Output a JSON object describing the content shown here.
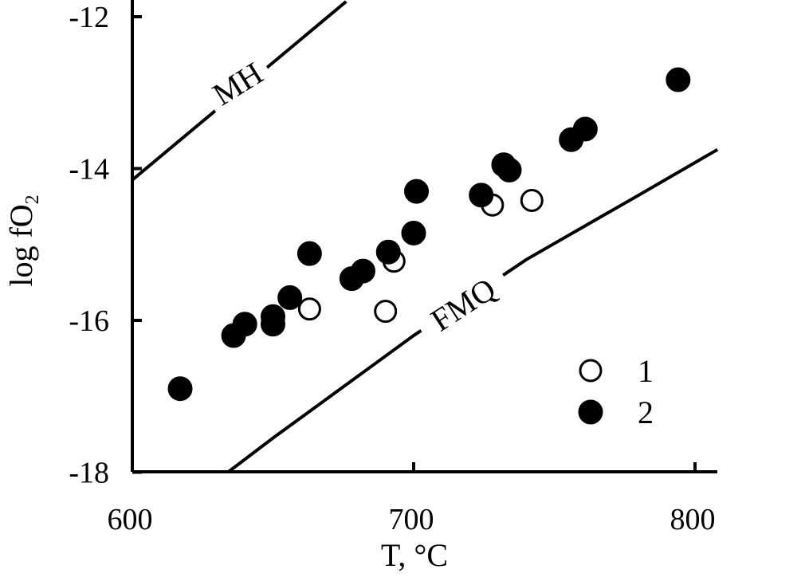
{
  "chart_data": {
    "type": "scatter",
    "xlabel": "T, °C",
    "ylabel_main": "log fO",
    "ylabel_sub": "2",
    "xlim": [
      600,
      808
    ],
    "ylim": [
      -18,
      -11.8
    ],
    "x_ticks": [
      600,
      700,
      800
    ],
    "x_tick_labels": [
      "600",
      "700",
      "800"
    ],
    "y_ticks": [
      -12,
      -14,
      -16,
      -18
    ],
    "y_tick_labels": [
      "-12",
      "-14",
      "-16",
      "-18"
    ],
    "grid": false,
    "legend_position": "bottom-right",
    "series": [
      {
        "name": "1",
        "marker": "open-circle",
        "points": [
          [
            663,
            -15.85
          ],
          [
            690,
            -15.88
          ],
          [
            693,
            -15.22
          ],
          [
            728,
            -14.48
          ],
          [
            742,
            -14.42
          ]
        ]
      },
      {
        "name": "2",
        "marker": "filled-circle",
        "points": [
          [
            617,
            -16.9
          ],
          [
            636,
            -16.2
          ],
          [
            640,
            -16.05
          ],
          [
            650,
            -15.95
          ],
          [
            650,
            -16.05
          ],
          [
            656,
            -15.7
          ],
          [
            663,
            -15.12
          ],
          [
            678,
            -15.45
          ],
          [
            682,
            -15.35
          ],
          [
            691,
            -15.1
          ],
          [
            700,
            -14.85
          ],
          [
            701,
            -14.3
          ],
          [
            724,
            -14.35
          ],
          [
            732,
            -13.95
          ],
          [
            734,
            -14.02
          ],
          [
            756,
            -13.62
          ],
          [
            761,
            -13.48
          ],
          [
            794,
            -12.83
          ]
        ]
      }
    ],
    "reference_lines": [
      {
        "name": "MH",
        "points": [
          [
            600,
            -14.15
          ],
          [
            676,
            -11.8
          ]
        ]
      },
      {
        "name": "FMQ",
        "points": [
          [
            634,
            -18.0
          ],
          [
            650,
            -17.55
          ],
          [
            700,
            -16.2
          ],
          [
            740,
            -15.2
          ],
          [
            780,
            -14.35
          ],
          [
            808,
            -13.75
          ]
        ]
      }
    ],
    "colors": {
      "ink": "#000000",
      "background": "#ffffff"
    }
  }
}
